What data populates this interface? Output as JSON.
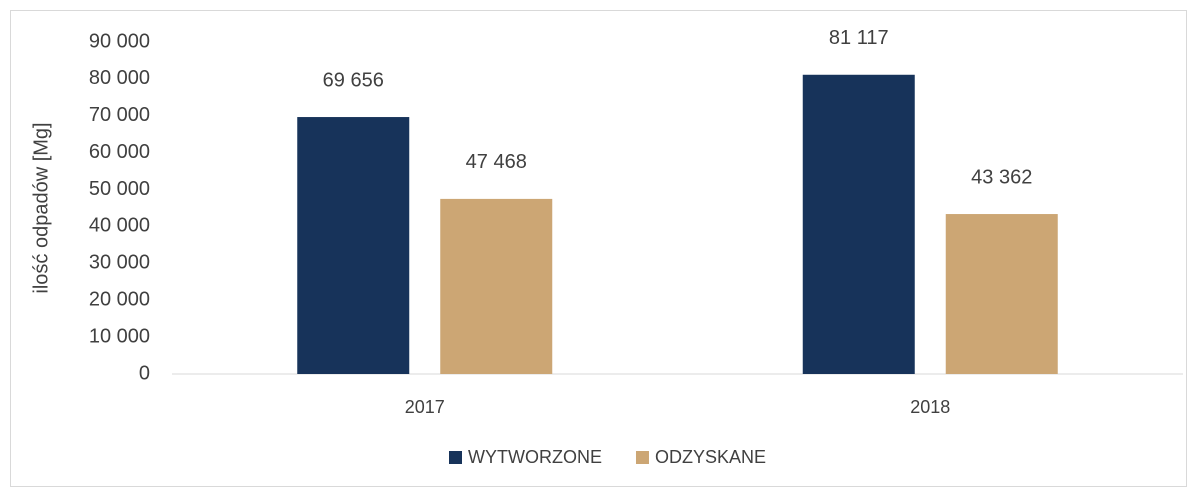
{
  "chart_data": {
    "type": "bar",
    "y_label": "ilość odpadów [Mg]",
    "categories": [
      "2017",
      "2018"
    ],
    "series": [
      {
        "name": "WYTWORZONE",
        "color": "#17335a",
        "values": [
          69656,
          81117
        ],
        "value_labels": [
          "69 656",
          "81 117"
        ]
      },
      {
        "name": "ODZYSKANE",
        "color": "#cca674",
        "values": [
          47468,
          43362
        ],
        "value_labels": [
          "47 468",
          "43 362"
        ]
      }
    ],
    "ylim": [
      0,
      90000
    ],
    "yticks": [
      {
        "value": 0,
        "label": "0"
      },
      {
        "value": 10000,
        "label": "10 000"
      },
      {
        "value": 20000,
        "label": "20 000"
      },
      {
        "value": 30000,
        "label": "30 000"
      },
      {
        "value": 40000,
        "label": "40 000"
      },
      {
        "value": 50000,
        "label": "50 000"
      },
      {
        "value": 60000,
        "label": "60 000"
      },
      {
        "value": 70000,
        "label": "70 000"
      },
      {
        "value": 80000,
        "label": "80 000"
      },
      {
        "value": 90000,
        "label": "90 000"
      }
    ],
    "grid": false,
    "legend": "bottom"
  }
}
